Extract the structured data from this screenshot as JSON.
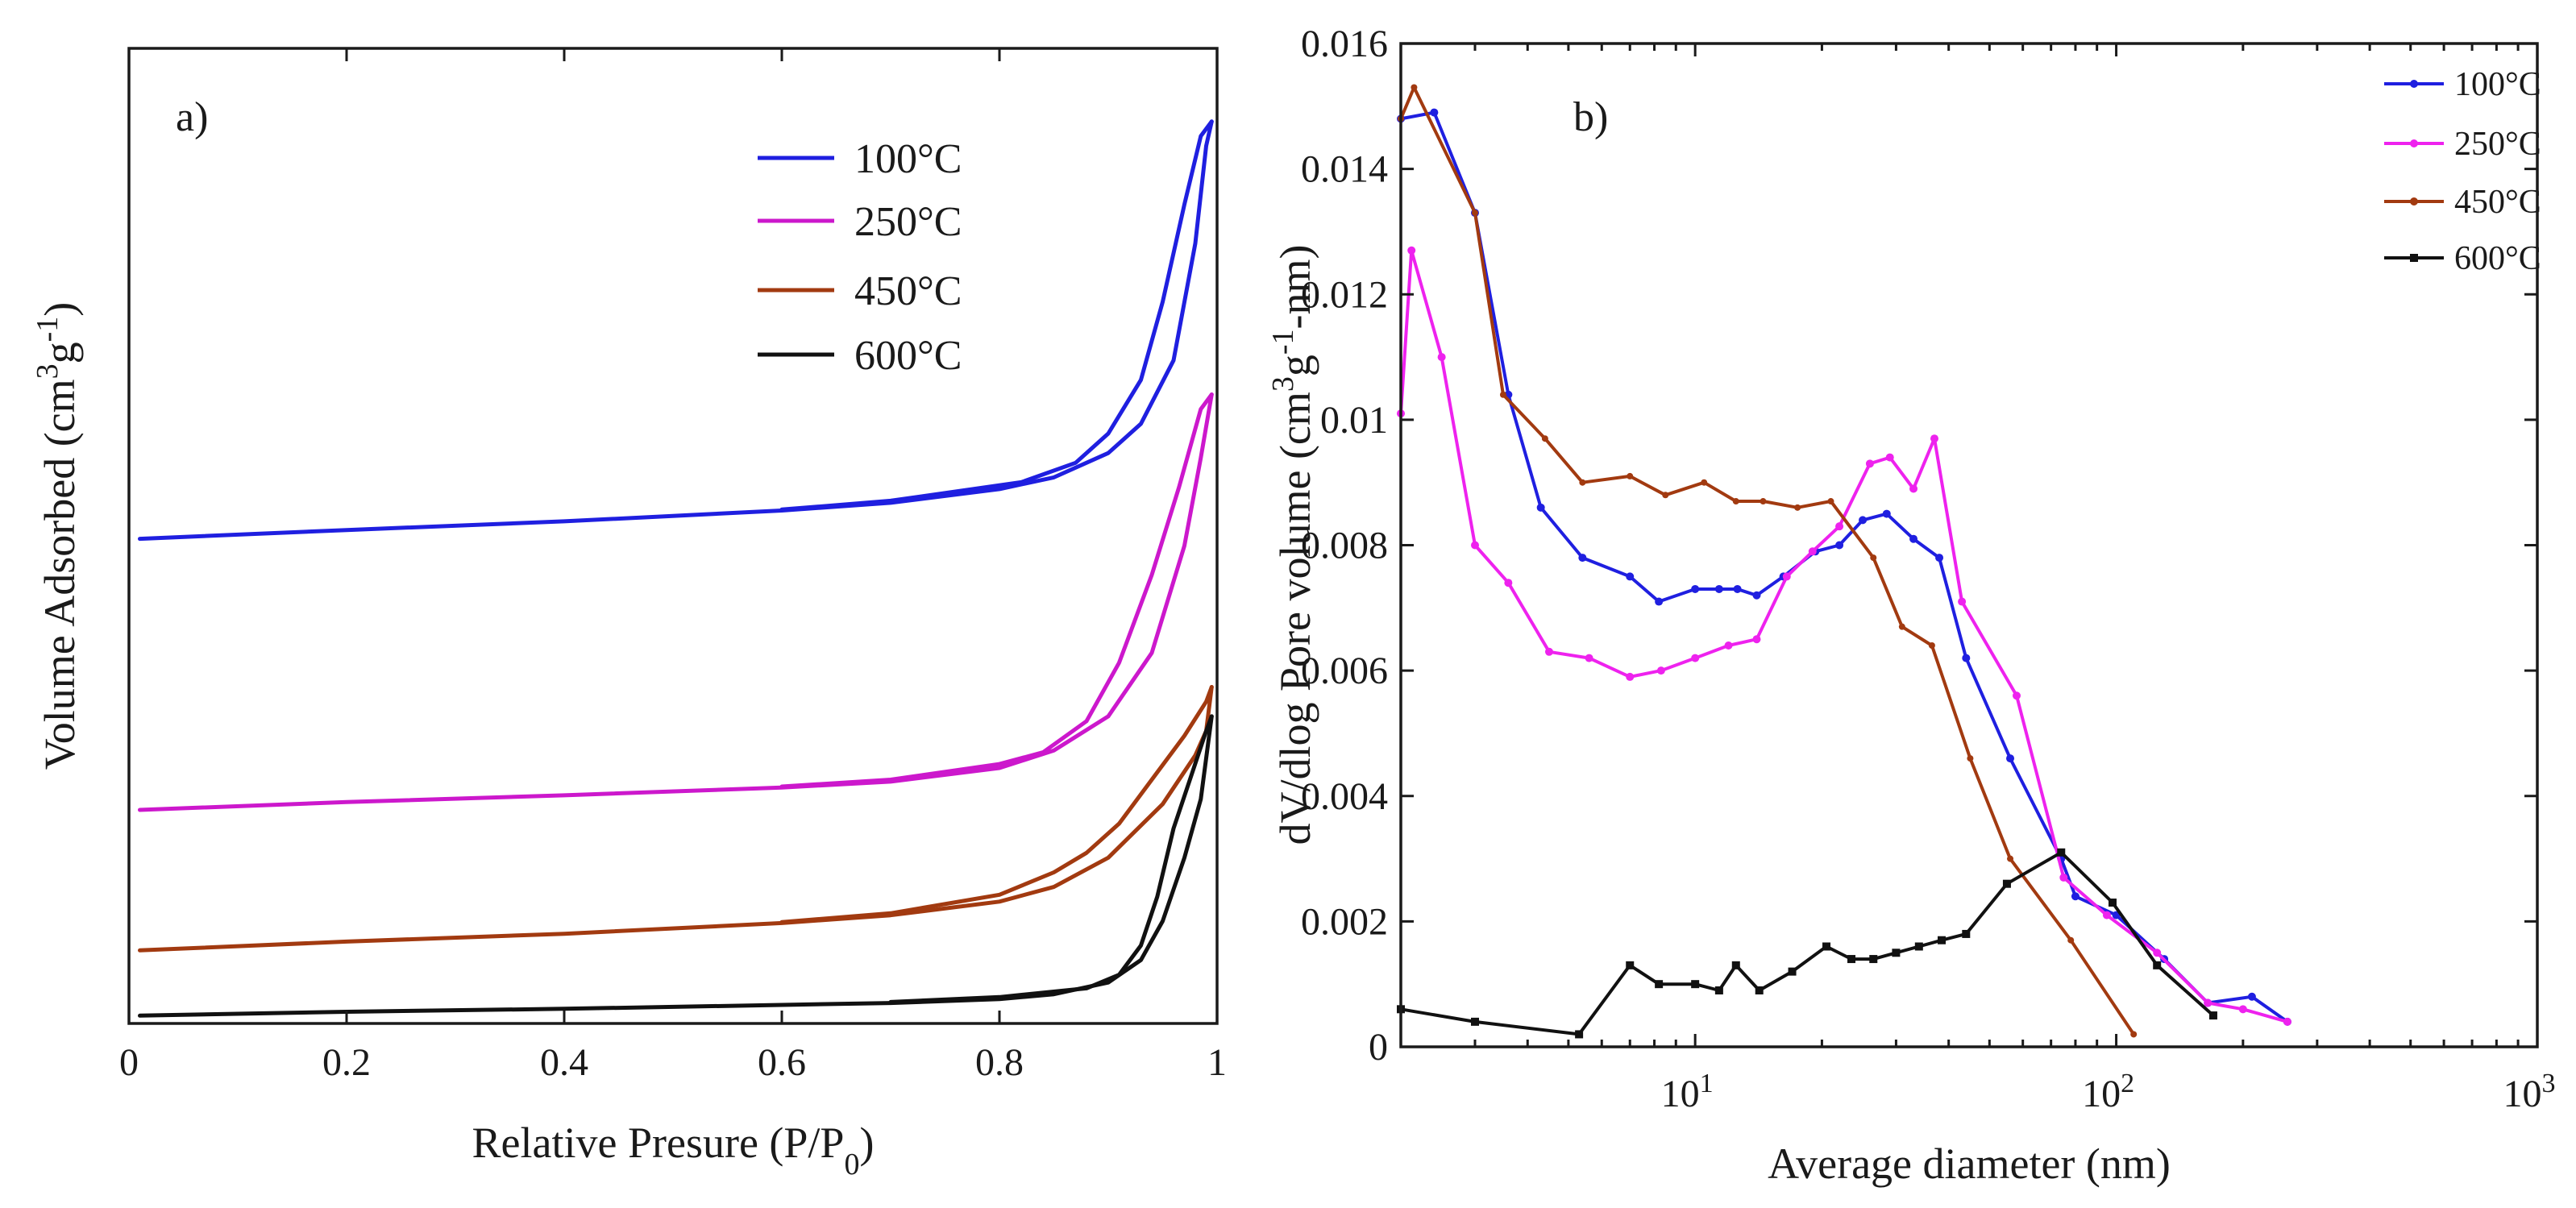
{
  "chart_data": [
    {
      "type": "line",
      "panel_label": "a)",
      "title": "",
      "xlabel": "Relative Presure (P/P",
      "xlabel_sub": "0",
      "xlabel_end": ")",
      "ylabel": "Volume Adsorbed (cm",
      "ylabel_sup1": "3",
      "ylabel_mid": "g",
      "ylabel_sup2": "-1",
      "ylabel_end": ")",
      "xlim": [
        0,
        1
      ],
      "xticks": [
        0,
        0.2,
        0.4,
        0.6,
        0.8,
        1
      ],
      "xtick_labels": [
        "0",
        "0.2",
        "0.4",
        "0.6",
        "0.8",
        "1"
      ],
      "yticks_shown": false,
      "ylim": [
        0,
        100
      ],
      "legend_position": "top-right",
      "series": [
        {
          "name": "100°C",
          "color": "#1f1fe0",
          "adsorption": [
            [
              0.01,
              49.7
            ],
            [
              0.2,
              50.6
            ],
            [
              0.4,
              51.5
            ],
            [
              0.6,
              52.6
            ],
            [
              0.7,
              53.4
            ],
            [
              0.8,
              54.8
            ],
            [
              0.85,
              56
            ],
            [
              0.9,
              58.5
            ],
            [
              0.93,
              61.5
            ],
            [
              0.96,
              68
            ],
            [
              0.98,
              80
            ],
            [
              0.99,
              90
            ],
            [
              0.995,
              92.5
            ]
          ],
          "desorption": [
            [
              0.995,
              92.5
            ],
            [
              0.985,
              91
            ],
            [
              0.97,
              84
            ],
            [
              0.95,
              74
            ],
            [
              0.93,
              66
            ],
            [
              0.9,
              60.5
            ],
            [
              0.87,
              57.5
            ],
            [
              0.82,
              55.5
            ],
            [
              0.7,
              53.6
            ],
            [
              0.6,
              52.7
            ]
          ]
        },
        {
          "name": "250°C",
          "color": "#cc18cc",
          "adsorption": [
            [
              0.01,
              21.9
            ],
            [
              0.2,
              22.7
            ],
            [
              0.4,
              23.4
            ],
            [
              0.6,
              24.2
            ],
            [
              0.7,
              24.8
            ],
            [
              0.8,
              26.2
            ],
            [
              0.85,
              28
            ],
            [
              0.9,
              31.5
            ],
            [
              0.94,
              38
            ],
            [
              0.97,
              49
            ],
            [
              0.985,
              58
            ],
            [
              0.995,
              64.5
            ]
          ],
          "desorption": [
            [
              0.995,
              64.5
            ],
            [
              0.985,
              63
            ],
            [
              0.965,
              55
            ],
            [
              0.94,
              46
            ],
            [
              0.91,
              37
            ],
            [
              0.88,
              31
            ],
            [
              0.84,
              27.8
            ],
            [
              0.8,
              26.6
            ],
            [
              0.7,
              25
            ],
            [
              0.6,
              24.3
            ]
          ]
        },
        {
          "name": "450°C",
          "color": "#a23a10",
          "adsorption": [
            [
              0.01,
              7.5
            ],
            [
              0.2,
              8.4
            ],
            [
              0.4,
              9.2
            ],
            [
              0.6,
              10.3
            ],
            [
              0.7,
              11.1
            ],
            [
              0.8,
              12.5
            ],
            [
              0.85,
              14
            ],
            [
              0.9,
              17
            ],
            [
              0.95,
              22.5
            ],
            [
              0.98,
              27.5
            ],
            [
              0.99,
              30
            ],
            [
              0.995,
              34.5
            ]
          ],
          "desorption": [
            [
              0.995,
              34.5
            ],
            [
              0.99,
              33
            ],
            [
              0.97,
              29.5
            ],
            [
              0.94,
              25
            ],
            [
              0.91,
              20.5
            ],
            [
              0.88,
              17.5
            ],
            [
              0.85,
              15.5
            ],
            [
              0.8,
              13.2
            ],
            [
              0.7,
              11.3
            ],
            [
              0.6,
              10.4
            ]
          ]
        },
        {
          "name": "600°C",
          "color": "#111111",
          "adsorption": [
            [
              0.01,
              0.8
            ],
            [
              0.2,
              1.2
            ],
            [
              0.4,
              1.5
            ],
            [
              0.6,
              1.9
            ],
            [
              0.7,
              2.1
            ],
            [
              0.8,
              2.5
            ],
            [
              0.85,
              3
            ],
            [
              0.9,
              4.2
            ],
            [
              0.93,
              6.5
            ],
            [
              0.95,
              10.5
            ],
            [
              0.97,
              17
            ],
            [
              0.985,
              23
            ],
            [
              0.995,
              31.5
            ]
          ],
          "desorption": [
            [
              0.995,
              31.5
            ],
            [
              0.99,
              30
            ],
            [
              0.975,
              25
            ],
            [
              0.96,
              20
            ],
            [
              0.945,
              13
            ],
            [
              0.93,
              8
            ],
            [
              0.91,
              5
            ],
            [
              0.88,
              3.6
            ],
            [
              0.8,
              2.7
            ],
            [
              0.7,
              2.2
            ]
          ]
        }
      ]
    },
    {
      "type": "line",
      "panel_label": "b)",
      "title": "",
      "xlabel": "Average diameter (nm)",
      "ylabel": "dV/dlog Pore volume (cm",
      "ylabel_sup1": "3",
      "ylabel_mid": "g",
      "ylabel_sup2": "-1",
      "ylabel_end": "-nm)",
      "xscale": "log",
      "xlim": [
        2,
        1000
      ],
      "xticks": [
        10,
        100,
        1000
      ],
      "xtick_bases": [
        "10",
        "10",
        "10"
      ],
      "xtick_exponents": [
        "1",
        "2",
        "3"
      ],
      "ylim": [
        0,
        0.016
      ],
      "yticks": [
        0,
        0.002,
        0.004,
        0.006,
        0.008,
        0.01,
        0.012,
        0.014,
        0.016
      ],
      "ytick_labels": [
        "0",
        "0.002",
        "0.004",
        "0.006",
        "0.008",
        "0.01",
        "0.012",
        "0.014",
        "0.016"
      ],
      "legend_position": "top-right",
      "series": [
        {
          "name": "100°C",
          "color": "#1f1fe0",
          "x": [
            2,
            2.4,
            3.0,
            3.6,
            4.3,
            5.4,
            7.0,
            8.2,
            10.0,
            11.4,
            12.6,
            14.0,
            16.2,
            19.3,
            22.0,
            25.0,
            28.5,
            33.0,
            38.0,
            44.0,
            56.0,
            74.0,
            80.0,
            100.0,
            130.0,
            165.0,
            210.0,
            255.0
          ],
          "values": [
            0.0148,
            0.0149,
            0.0133,
            0.0104,
            0.0086,
            0.0078,
            0.0075,
            0.0071,
            0.0073,
            0.0073,
            0.0073,
            0.0072,
            0.0075,
            0.0079,
            0.008,
            0.0084,
            0.0085,
            0.0081,
            0.0078,
            0.0062,
            0.0046,
            0.003,
            0.0024,
            0.0021,
            0.0014,
            0.0007,
            0.0008,
            0.0004
          ]
        },
        {
          "name": "250°C",
          "color": "#ee22ee",
          "x": [
            2.0,
            2.12,
            2.5,
            3.0,
            3.6,
            4.5,
            5.6,
            7.0,
            8.3,
            10.0,
            12.0,
            14.0,
            16.5,
            19.0,
            22.0,
            26.0,
            29.0,
            33.0,
            37.0,
            43.0,
            58.0,
            75.0,
            95.0,
            125.0,
            165.0,
            200.0,
            255.0
          ],
          "values": [
            0.0101,
            0.0127,
            0.011,
            0.008,
            0.0074,
            0.0063,
            0.0062,
            0.0059,
            0.006,
            0.0062,
            0.0064,
            0.0065,
            0.0075,
            0.0079,
            0.0083,
            0.0093,
            0.0094,
            0.0089,
            0.0097,
            0.0071,
            0.0056,
            0.0027,
            0.0021,
            0.0015,
            0.0007,
            0.0006,
            0.0004
          ]
        },
        {
          "name": "450°C",
          "color": "#a23a10",
          "x": [
            2.0,
            2.15,
            3.0,
            3.5,
            4.4,
            5.4,
            7.0,
            8.5,
            10.5,
            12.5,
            14.5,
            17.5,
            21.0,
            26.5,
            31.0,
            36.5,
            45.0,
            56.0,
            78.0,
            110.0
          ],
          "values": [
            0.0148,
            0.0153,
            0.0133,
            0.0104,
            0.0097,
            0.009,
            0.0091,
            0.0088,
            0.009,
            0.0087,
            0.0087,
            0.0086,
            0.0087,
            0.0078,
            0.0067,
            0.0064,
            0.0046,
            0.003,
            0.0017,
            0.0002
          ]
        },
        {
          "name": "600°C",
          "color": "#111111",
          "x": [
            2.0,
            3.0,
            5.3,
            7.0,
            8.2,
            10.0,
            11.4,
            12.5,
            14.2,
            17.0,
            20.5,
            23.5,
            26.5,
            30.0,
            34.0,
            38.5,
            44.0,
            55.0,
            74.0,
            98.0,
            125.0,
            170.0
          ],
          "values": [
            0.0006,
            0.0004,
            0.0002,
            0.0013,
            0.001,
            0.001,
            0.0009,
            0.0013,
            0.0009,
            0.0012,
            0.0016,
            0.0014,
            0.0014,
            0.0015,
            0.0016,
            0.0017,
            0.0018,
            0.0026,
            0.0031,
            0.0023,
            0.0013,
            0.0005
          ]
        }
      ]
    }
  ]
}
